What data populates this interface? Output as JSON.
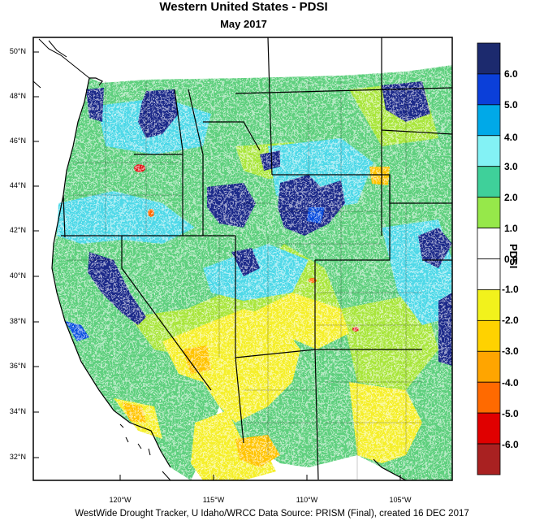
{
  "title": "Western United States - PDSI",
  "subtitle": "May 2017",
  "colorbar": {
    "title": "PDSI",
    "labels": [
      "6.0",
      "5.0",
      "4.0",
      "3.0",
      "2.0",
      "1.0",
      "0.0",
      "-1.0",
      "-2.0",
      "-3.0",
      "-4.0",
      "-5.0",
      "-6.0"
    ],
    "colors": [
      "#1c2a6e",
      "#0b3fd9",
      "#00a9e8",
      "#83f2f5",
      "#3fd09a",
      "#96e84a",
      "#ffffff",
      "#ffffff",
      "#f2f21c",
      "#ffd200",
      "#ffa500",
      "#ff6a00",
      "#e00000",
      "#a92121"
    ]
  },
  "lat_labels": [
    "50°N",
    "48°N",
    "46°N",
    "44°N",
    "42°N",
    "40°N",
    "38°N",
    "36°N",
    "34°N",
    "32°N"
  ],
  "lon_labels": [
    "120°W",
    "115°W",
    "110°W",
    "105°W"
  ],
  "footer": "WestWide Drought Tracker, U Idaho/WRCC Data Source: PRISM (Final), created 16 DEC 2017"
}
